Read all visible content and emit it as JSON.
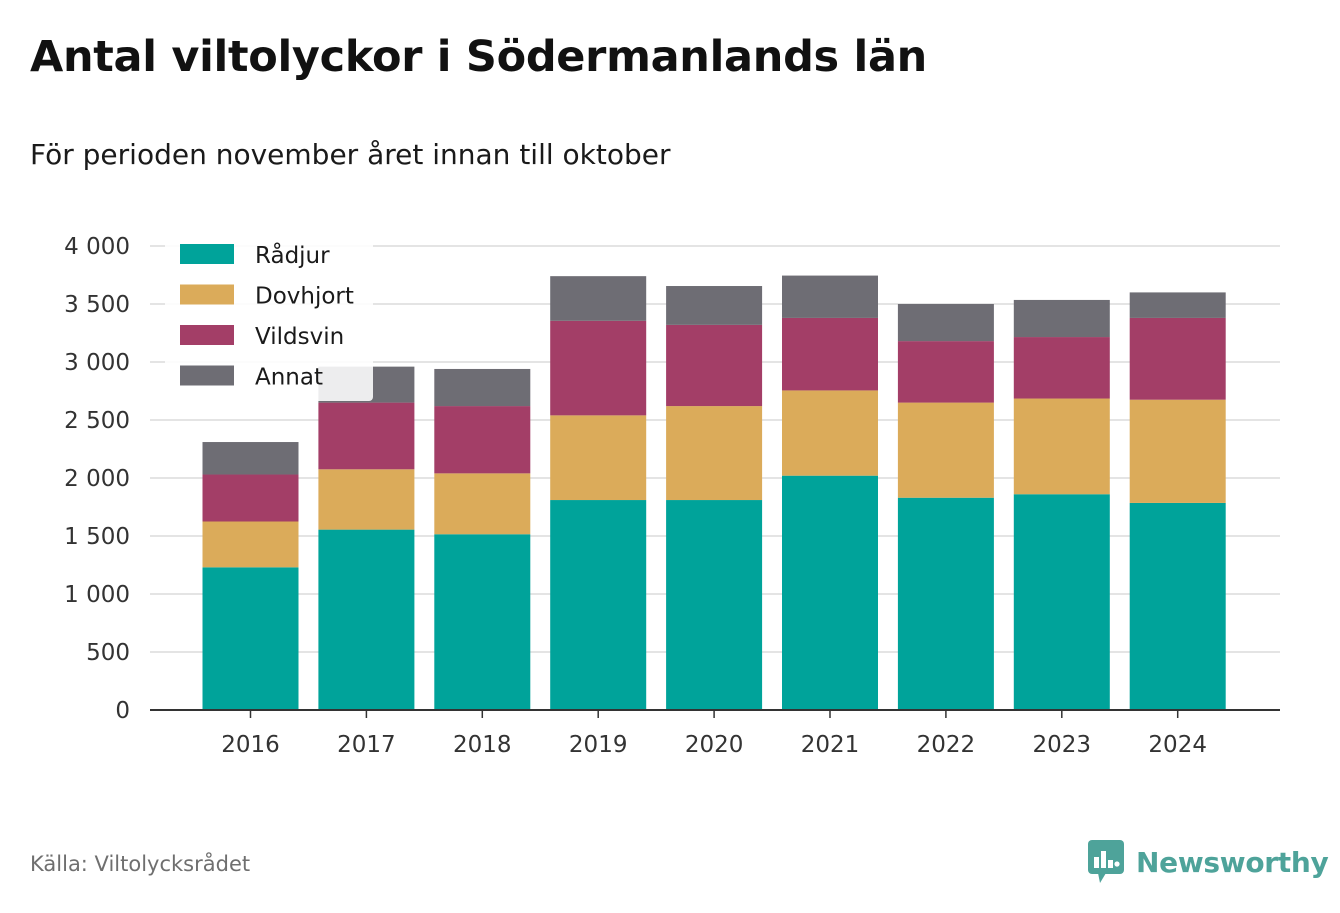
{
  "title": "Antal viltolyckor i Södermanlands län",
  "subtitle": "För perioden november året innan till oktober",
  "source": "Källa: Viltolycksrådet",
  "brand": "Newsworthy",
  "colors": {
    "Rådjur": "#00a39a",
    "Dovhjort": "#dbab5a",
    "Vildsvin": "#a33e67",
    "Annat": "#6e6d74",
    "grid": "#dcdcdc",
    "axis": "#333333",
    "brand": "#4ea39a"
  },
  "chart_data": {
    "type": "bar",
    "stacked": true,
    "title": "Antal viltolyckor i Södermanlands län",
    "subtitle": "För perioden november året innan till oktober",
    "categories": [
      "2016",
      "2017",
      "2018",
      "2019",
      "2020",
      "2021",
      "2022",
      "2023",
      "2024"
    ],
    "series": [
      {
        "name": "Rådjur",
        "values": [
          1230,
          1555,
          1515,
          1810,
          1810,
          2020,
          1830,
          1860,
          1785
        ]
      },
      {
        "name": "Dovhjort",
        "values": [
          395,
          520,
          525,
          730,
          810,
          735,
          820,
          825,
          890
        ]
      },
      {
        "name": "Vildsvin",
        "values": [
          405,
          575,
          580,
          815,
          700,
          625,
          530,
          530,
          705
        ]
      },
      {
        "name": "Annat",
        "values": [
          280,
          310,
          320,
          385,
          335,
          365,
          320,
          320,
          220
        ]
      }
    ],
    "ylim": [
      0,
      4000
    ],
    "yticks": [
      0,
      500,
      1000,
      1500,
      2000,
      2500,
      3000,
      3500,
      4000
    ],
    "ytick_labels": [
      "0",
      "500",
      "1 000",
      "1 500",
      "2 000",
      "2 500",
      "3 000",
      "3 500",
      "4 000"
    ],
    "xlabel": "",
    "ylabel": "",
    "grid": true,
    "legend_position": "top-left"
  }
}
